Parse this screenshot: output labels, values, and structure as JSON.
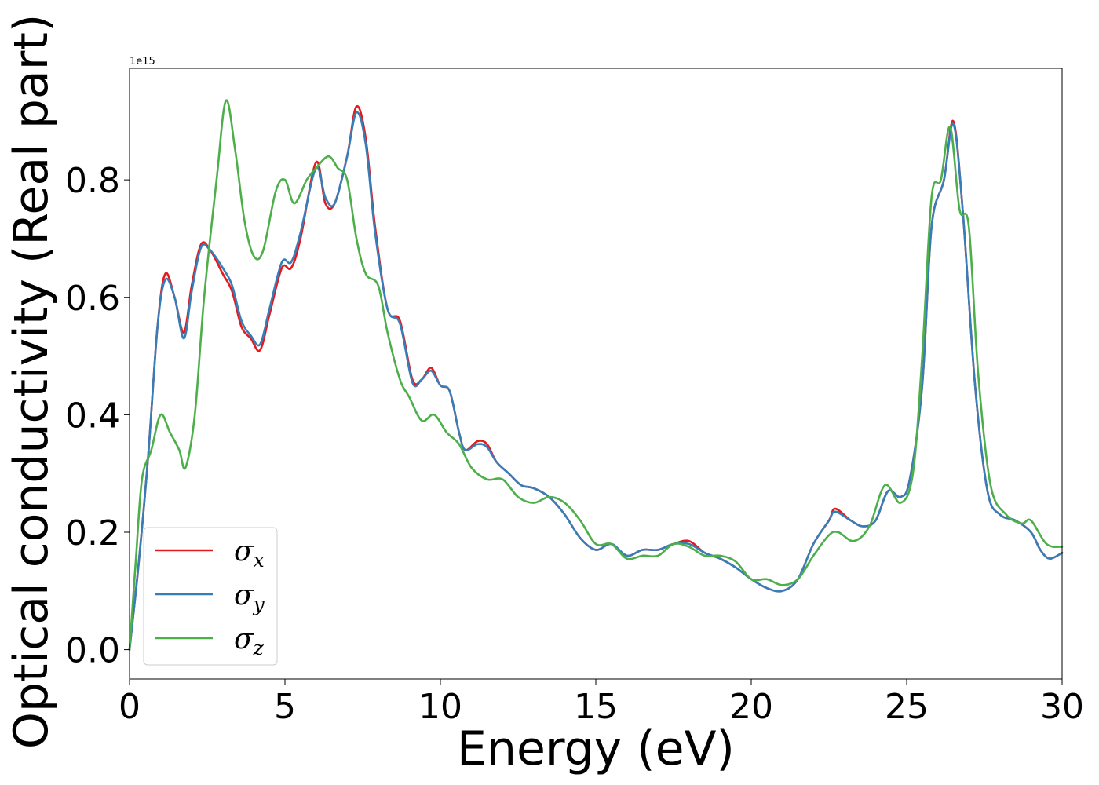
{
  "chart_data": {
    "type": "line",
    "title": "",
    "xlabel": "Energy (eV)",
    "ylabel": "Optical conductivity (Real part)",
    "y_offset_label": "1e15",
    "y_scale": 1000000000000000.0,
    "xlim": [
      0,
      30
    ],
    "ylim": [
      -0.05,
      0.99
    ],
    "xticks": [
      0,
      5,
      10,
      15,
      20,
      25,
      30
    ],
    "yticks": [
      0.0,
      0.2,
      0.4,
      0.6,
      0.8
    ],
    "xtick_labels": [
      "0",
      "5",
      "10",
      "15",
      "20",
      "25",
      "30"
    ],
    "ytick_labels": [
      "0.0",
      "0.2",
      "0.4",
      "0.6",
      "0.8"
    ],
    "grid": false,
    "legend_position": "lower-left",
    "series": [
      {
        "name": "σx",
        "name_base": "σ",
        "name_sub": "x",
        "color": "#e41a1c",
        "points": [
          [
            0,
            0.0
          ],
          [
            0.3,
            0.15
          ],
          [
            0.6,
            0.33
          ],
          [
            0.9,
            0.55
          ],
          [
            1.15,
            0.64
          ],
          [
            1.45,
            0.6
          ],
          [
            1.75,
            0.54
          ],
          [
            2.0,
            0.62
          ],
          [
            2.3,
            0.69
          ],
          [
            2.6,
            0.68
          ],
          [
            3.0,
            0.64
          ],
          [
            3.3,
            0.61
          ],
          [
            3.6,
            0.55
          ],
          [
            3.9,
            0.53
          ],
          [
            4.2,
            0.51
          ],
          [
            4.5,
            0.57
          ],
          [
            4.9,
            0.65
          ],
          [
            5.2,
            0.65
          ],
          [
            5.5,
            0.7
          ],
          [
            6.0,
            0.83
          ],
          [
            6.3,
            0.76
          ],
          [
            6.6,
            0.76
          ],
          [
            7.0,
            0.84
          ],
          [
            7.3,
            0.925
          ],
          [
            7.6,
            0.87
          ],
          [
            7.9,
            0.72
          ],
          [
            8.3,
            0.58
          ],
          [
            8.7,
            0.56
          ],
          [
            9.1,
            0.46
          ],
          [
            9.4,
            0.46
          ],
          [
            9.7,
            0.48
          ],
          [
            10.0,
            0.45
          ],
          [
            10.3,
            0.44
          ],
          [
            10.6,
            0.37
          ],
          [
            10.8,
            0.34
          ],
          [
            11.2,
            0.355
          ],
          [
            11.5,
            0.35
          ],
          [
            11.8,
            0.32
          ],
          [
            12.2,
            0.3
          ],
          [
            12.6,
            0.28
          ],
          [
            13.0,
            0.275
          ],
          [
            13.5,
            0.26
          ],
          [
            14.0,
            0.23
          ],
          [
            14.5,
            0.19
          ],
          [
            15.0,
            0.17
          ],
          [
            15.5,
            0.18
          ],
          [
            16.0,
            0.16
          ],
          [
            16.5,
            0.17
          ],
          [
            17.0,
            0.17
          ],
          [
            17.5,
            0.18
          ],
          [
            18.0,
            0.185
          ],
          [
            18.5,
            0.165
          ],
          [
            19.0,
            0.155
          ],
          [
            19.5,
            0.14
          ],
          [
            20.0,
            0.12
          ],
          [
            20.5,
            0.105
          ],
          [
            21.0,
            0.1
          ],
          [
            21.5,
            0.12
          ],
          [
            22.0,
            0.18
          ],
          [
            22.5,
            0.22
          ],
          [
            22.7,
            0.24
          ],
          [
            23.2,
            0.22
          ],
          [
            23.6,
            0.21
          ],
          [
            24.0,
            0.22
          ],
          [
            24.4,
            0.27
          ],
          [
            24.8,
            0.26
          ],
          [
            25.1,
            0.29
          ],
          [
            25.5,
            0.45
          ],
          [
            25.8,
            0.72
          ],
          [
            26.2,
            0.8
          ],
          [
            26.5,
            0.9
          ],
          [
            26.8,
            0.75
          ],
          [
            27.2,
            0.45
          ],
          [
            27.6,
            0.27
          ],
          [
            28.0,
            0.23
          ],
          [
            28.5,
            0.22
          ],
          [
            29.0,
            0.2
          ],
          [
            29.3,
            0.17
          ],
          [
            29.6,
            0.155
          ],
          [
            30.0,
            0.165
          ]
        ]
      },
      {
        "name": "σy",
        "name_base": "σ",
        "name_sub": "y",
        "color": "#377eb8",
        "points": [
          [
            0,
            0.0
          ],
          [
            0.3,
            0.15
          ],
          [
            0.6,
            0.33
          ],
          [
            0.9,
            0.55
          ],
          [
            1.15,
            0.63
          ],
          [
            1.45,
            0.6
          ],
          [
            1.75,
            0.53
          ],
          [
            2.0,
            0.61
          ],
          [
            2.3,
            0.685
          ],
          [
            2.6,
            0.68
          ],
          [
            3.0,
            0.65
          ],
          [
            3.3,
            0.62
          ],
          [
            3.6,
            0.56
          ],
          [
            3.9,
            0.535
          ],
          [
            4.2,
            0.52
          ],
          [
            4.5,
            0.58
          ],
          [
            4.9,
            0.66
          ],
          [
            5.2,
            0.66
          ],
          [
            5.5,
            0.71
          ],
          [
            6.0,
            0.82
          ],
          [
            6.3,
            0.77
          ],
          [
            6.6,
            0.76
          ],
          [
            7.0,
            0.84
          ],
          [
            7.3,
            0.915
          ],
          [
            7.6,
            0.86
          ],
          [
            7.9,
            0.71
          ],
          [
            8.3,
            0.58
          ],
          [
            8.7,
            0.555
          ],
          [
            9.1,
            0.455
          ],
          [
            9.4,
            0.46
          ],
          [
            9.7,
            0.475
          ],
          [
            10.0,
            0.45
          ],
          [
            10.3,
            0.44
          ],
          [
            10.6,
            0.37
          ],
          [
            10.8,
            0.34
          ],
          [
            11.2,
            0.35
          ],
          [
            11.5,
            0.345
          ],
          [
            11.8,
            0.32
          ],
          [
            12.2,
            0.3
          ],
          [
            12.6,
            0.28
          ],
          [
            13.0,
            0.275
          ],
          [
            13.5,
            0.26
          ],
          [
            14.0,
            0.23
          ],
          [
            14.5,
            0.19
          ],
          [
            15.0,
            0.17
          ],
          [
            15.5,
            0.18
          ],
          [
            16.0,
            0.16
          ],
          [
            16.5,
            0.17
          ],
          [
            17.0,
            0.17
          ],
          [
            17.5,
            0.18
          ],
          [
            18.0,
            0.18
          ],
          [
            18.5,
            0.165
          ],
          [
            19.0,
            0.155
          ],
          [
            19.5,
            0.14
          ],
          [
            20.0,
            0.12
          ],
          [
            20.5,
            0.105
          ],
          [
            21.0,
            0.1
          ],
          [
            21.5,
            0.12
          ],
          [
            22.0,
            0.18
          ],
          [
            22.5,
            0.22
          ],
          [
            22.7,
            0.235
          ],
          [
            23.2,
            0.22
          ],
          [
            23.6,
            0.21
          ],
          [
            24.0,
            0.22
          ],
          [
            24.4,
            0.27
          ],
          [
            24.8,
            0.26
          ],
          [
            25.1,
            0.29
          ],
          [
            25.5,
            0.45
          ],
          [
            25.8,
            0.72
          ],
          [
            26.2,
            0.8
          ],
          [
            26.5,
            0.895
          ],
          [
            26.8,
            0.75
          ],
          [
            27.2,
            0.45
          ],
          [
            27.6,
            0.27
          ],
          [
            28.0,
            0.23
          ],
          [
            28.5,
            0.22
          ],
          [
            29.0,
            0.2
          ],
          [
            29.3,
            0.17
          ],
          [
            29.6,
            0.155
          ],
          [
            30.0,
            0.165
          ]
        ]
      },
      {
        "name": "σz",
        "name_base": "σ",
        "name_sub": "z",
        "color": "#4daf4a",
        "points": [
          [
            0,
            0.0
          ],
          [
            0.2,
            0.15
          ],
          [
            0.4,
            0.29
          ],
          [
            0.7,
            0.34
          ],
          [
            1.0,
            0.4
          ],
          [
            1.3,
            0.37
          ],
          [
            1.6,
            0.34
          ],
          [
            1.8,
            0.31
          ],
          [
            2.1,
            0.4
          ],
          [
            2.4,
            0.6
          ],
          [
            2.8,
            0.8
          ],
          [
            3.1,
            0.935
          ],
          [
            3.4,
            0.85
          ],
          [
            3.7,
            0.73
          ],
          [
            4.0,
            0.67
          ],
          [
            4.3,
            0.68
          ],
          [
            4.7,
            0.78
          ],
          [
            5.0,
            0.8
          ],
          [
            5.3,
            0.76
          ],
          [
            5.7,
            0.8
          ],
          [
            6.0,
            0.82
          ],
          [
            6.4,
            0.84
          ],
          [
            6.7,
            0.82
          ],
          [
            7.0,
            0.8
          ],
          [
            7.3,
            0.7
          ],
          [
            7.6,
            0.64
          ],
          [
            8.0,
            0.62
          ],
          [
            8.3,
            0.54
          ],
          [
            8.7,
            0.46
          ],
          [
            9.0,
            0.43
          ],
          [
            9.4,
            0.39
          ],
          [
            9.8,
            0.4
          ],
          [
            10.2,
            0.37
          ],
          [
            10.6,
            0.35
          ],
          [
            11.0,
            0.31
          ],
          [
            11.5,
            0.29
          ],
          [
            12.0,
            0.29
          ],
          [
            12.5,
            0.26
          ],
          [
            13.0,
            0.25
          ],
          [
            13.5,
            0.26
          ],
          [
            14.0,
            0.25
          ],
          [
            14.5,
            0.22
          ],
          [
            15.0,
            0.18
          ],
          [
            15.5,
            0.18
          ],
          [
            16.0,
            0.155
          ],
          [
            16.5,
            0.16
          ],
          [
            17.0,
            0.16
          ],
          [
            17.5,
            0.18
          ],
          [
            18.0,
            0.175
          ],
          [
            18.5,
            0.16
          ],
          [
            19.0,
            0.16
          ],
          [
            19.5,
            0.15
          ],
          [
            20.0,
            0.12
          ],
          [
            20.5,
            0.12
          ],
          [
            21.0,
            0.11
          ],
          [
            21.5,
            0.12
          ],
          [
            22.0,
            0.16
          ],
          [
            22.5,
            0.195
          ],
          [
            22.8,
            0.2
          ],
          [
            23.3,
            0.185
          ],
          [
            23.8,
            0.21
          ],
          [
            24.3,
            0.28
          ],
          [
            24.8,
            0.25
          ],
          [
            25.2,
            0.3
          ],
          [
            25.5,
            0.5
          ],
          [
            25.8,
            0.77
          ],
          [
            26.1,
            0.8
          ],
          [
            26.4,
            0.89
          ],
          [
            26.7,
            0.75
          ],
          [
            27.0,
            0.72
          ],
          [
            27.3,
            0.47
          ],
          [
            27.7,
            0.28
          ],
          [
            28.2,
            0.23
          ],
          [
            28.7,
            0.215
          ],
          [
            29.0,
            0.22
          ],
          [
            29.5,
            0.18
          ],
          [
            30.0,
            0.175
          ]
        ]
      }
    ]
  }
}
